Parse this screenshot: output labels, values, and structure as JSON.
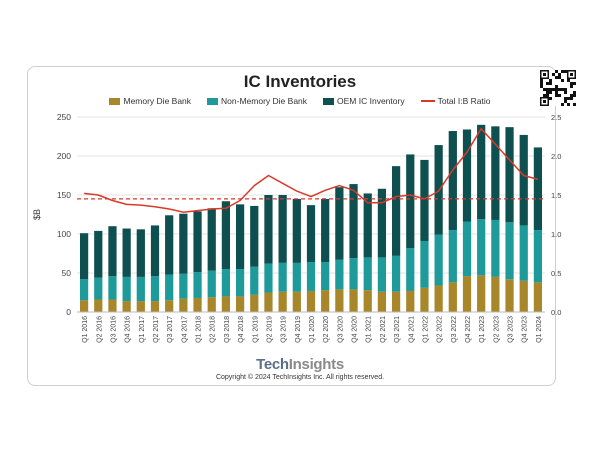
{
  "chart_data": {
    "type": "bar",
    "stacked": true,
    "title": "IC Inventories",
    "ylabel": "$B",
    "ylim": [
      0,
      250
    ],
    "yticks": [
      0,
      50,
      100,
      150,
      200,
      250
    ],
    "y2lim": [
      0,
      2.5
    ],
    "y2ticks": [
      "0.0",
      "0.5",
      "1.0",
      "1.5",
      "2.0",
      "2.5"
    ],
    "categories": [
      "Q1 2016",
      "Q2 2016",
      "Q3 2016",
      "Q4 2016",
      "Q1 2017",
      "Q2 2017",
      "Q3 2017",
      "Q4 2017",
      "Q1 2018",
      "Q2 2018",
      "Q3 2018",
      "Q4 2018",
      "Q1 2019",
      "Q2 2019",
      "Q3 2019",
      "Q4 2019",
      "Q1 2020",
      "Q2 2020",
      "Q3 2020",
      "Q4 2020",
      "Q1 2021",
      "Q2 2021",
      "Q3 2021",
      "Q4 2021",
      "Q1 2022",
      "Q2 2022",
      "Q3 2022",
      "Q4 2022",
      "Q1 2023",
      "Q2 2023",
      "Q3 2023",
      "Q4 2023",
      "Q1 2024"
    ],
    "series": [
      {
        "name": "Memory Die Bank",
        "color": "#a8862a",
        "values": [
          15,
          16,
          16,
          14,
          14,
          14,
          15,
          17,
          18,
          19,
          20,
          20,
          22,
          25,
          26,
          26,
          27,
          28,
          29,
          29,
          28,
          26,
          26,
          27,
          31,
          34,
          38,
          46,
          47,
          45,
          42,
          40,
          38
        ]
      },
      {
        "name": "Non-Memory Die Bank",
        "color": "#1e9a9a",
        "values": [
          27,
          28,
          30,
          31,
          31,
          32,
          33,
          32,
          33,
          34,
          35,
          35,
          36,
          37,
          37,
          37,
          37,
          36,
          38,
          40,
          42,
          44,
          46,
          55,
          60,
          65,
          67,
          70,
          72,
          73,
          73,
          71,
          67
        ]
      },
      {
        "name": "OEM IC Inventory",
        "color": "#0e4f4f",
        "values": [
          59,
          60,
          64,
          62,
          61,
          65,
          76,
          77,
          78,
          80,
          87,
          83,
          78,
          88,
          87,
          82,
          73,
          81,
          93,
          95,
          82,
          88,
          115,
          120,
          104,
          115,
          127,
          118,
          121,
          120,
          122,
          116,
          106
        ]
      }
    ],
    "line_series": {
      "name": "Total I:B Ratio",
      "color": "#d83a2a",
      "axis": "right",
      "values": [
        1.52,
        1.5,
        1.43,
        1.38,
        1.37,
        1.35,
        1.32,
        1.28,
        1.3,
        1.32,
        1.33,
        1.43,
        1.62,
        1.75,
        1.65,
        1.55,
        1.48,
        1.56,
        1.62,
        1.56,
        1.4,
        1.4,
        1.48,
        1.5,
        1.45,
        1.55,
        1.82,
        2.05,
        2.35,
        2.15,
        1.95,
        1.75,
        1.7
      ]
    },
    "reference_line": {
      "axis": "right",
      "value": 1.45,
      "style": "dashed",
      "color": "#d83a2a"
    }
  },
  "legend": {
    "memory": "Memory Die Bank",
    "nonmemory": "Non-Memory Die Bank",
    "oem": "OEM IC  Inventory",
    "ratio": "Total  I:B Ratio"
  },
  "footer": {
    "brand_tech": "Tech",
    "brand_insights": "Insights",
    "copyright": "Copyright © 2024 TechInsights Inc.  All rights reserved."
  }
}
